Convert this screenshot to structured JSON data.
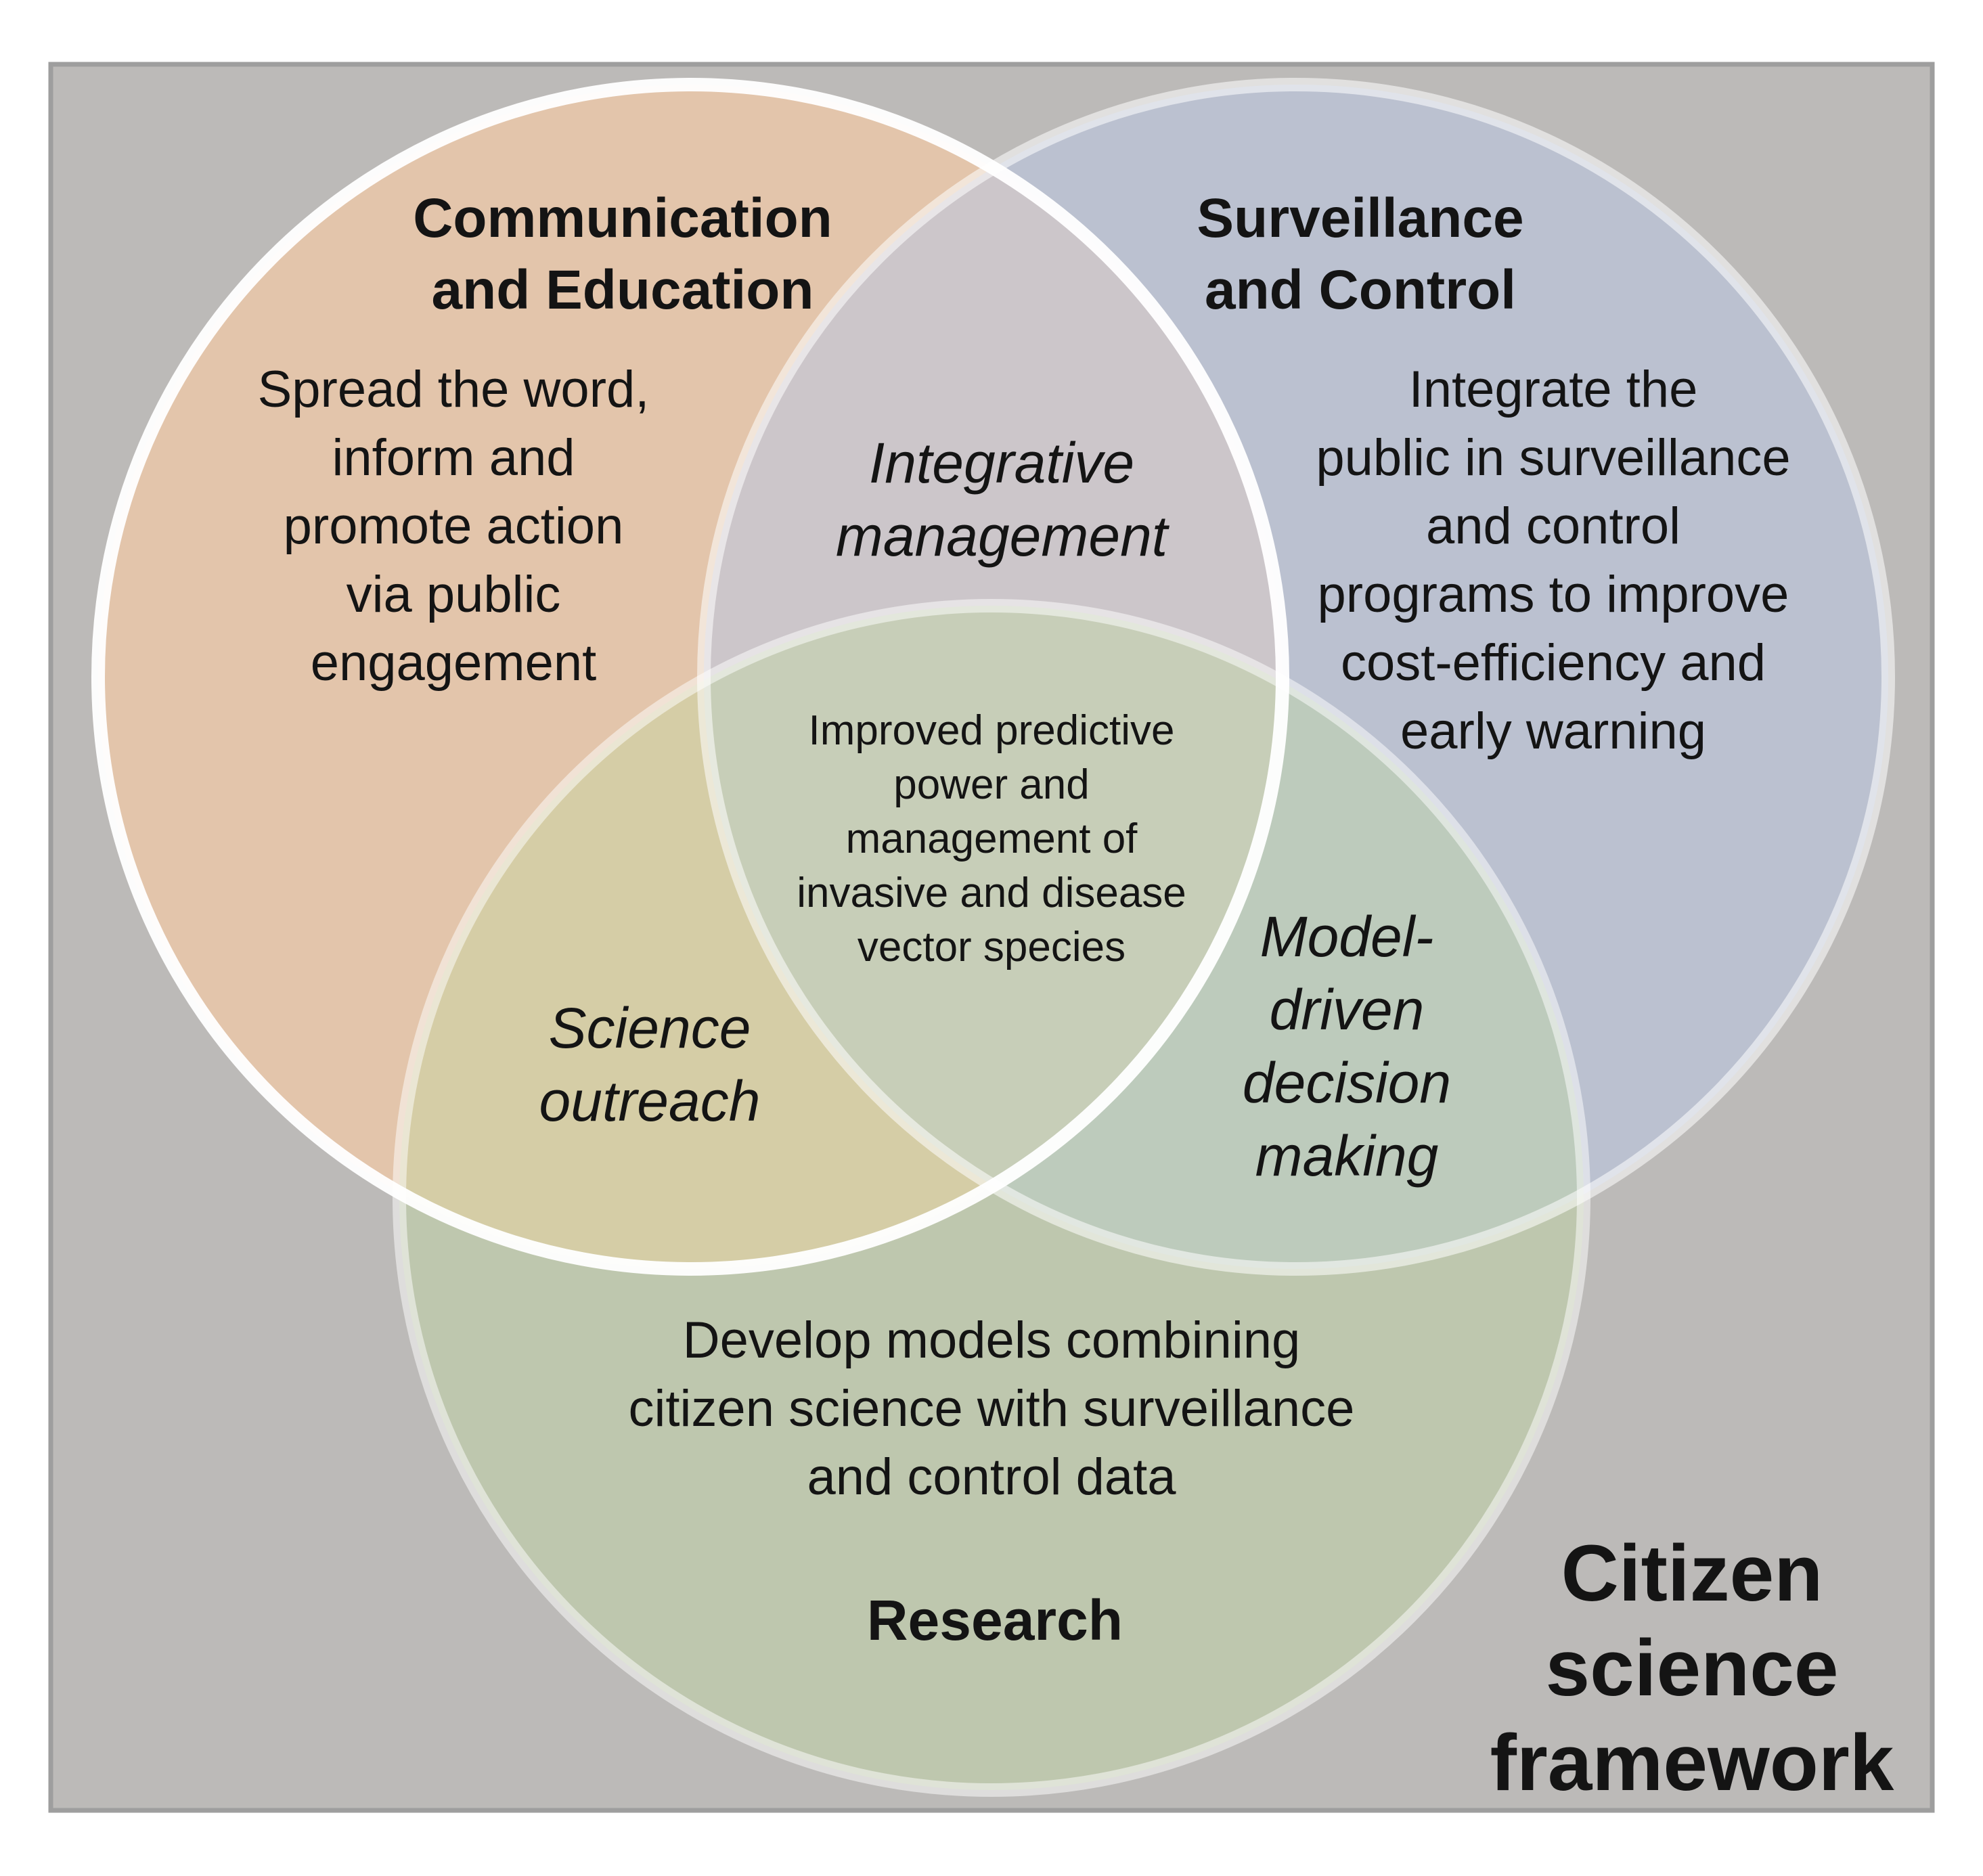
{
  "colors": {
    "background_panel": "#bcbab8",
    "panel_border": "#9e9e9e",
    "circle_communication": "#f2c9a6",
    "circle_surveillance": "#b9c7e4",
    "circle_research": "#c2d9a0",
    "circle_outline": "#ffffff"
  },
  "circles": {
    "communication": {
      "title": "Communication\nand Education",
      "description": "Spread the word,\ninform and\npromote action\nvia public\nengagement"
    },
    "surveillance": {
      "title": "Surveillance\nand Control",
      "description": "Integrate the\npublic in surveillance\nand control\nprograms to improve\ncost-efficiency and\nearly warning"
    },
    "research": {
      "title": "Research",
      "description": "Develop models combining\ncitizen science with surveillance\nand control data"
    }
  },
  "overlaps": {
    "communication_surveillance": "Integrative\nmanagement",
    "communication_research": "Science\noutreach",
    "surveillance_research": "Model-\ndriven\ndecision\nmaking",
    "all_three": "Improved predictive\npower and\nmanagement of\ninvasive and disease\nvector species"
  },
  "framework_title": "Citizen\nscience\nframework"
}
